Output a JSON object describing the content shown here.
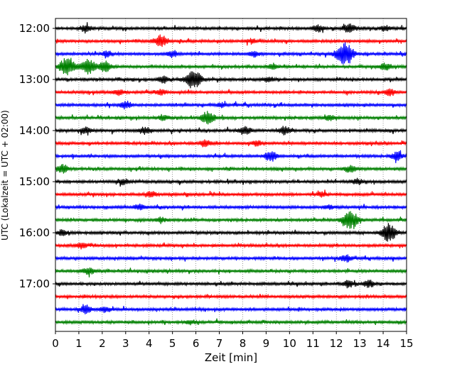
{
  "chart_data": {
    "type": "line",
    "title": "",
    "xlabel": "Zeit  [min]",
    "ylabel": "UTC (Lokalzeit = UTC + 02:00)",
    "xlim": [
      0,
      15
    ],
    "x_ticks": [
      0,
      1,
      2,
      3,
      4,
      5,
      6,
      7,
      8,
      9,
      10,
      11,
      12,
      13,
      14,
      15
    ],
    "y_tick_labels": [
      "12:00",
      "13:00",
      "14:00",
      "15:00",
      "16:00",
      "17:00"
    ],
    "grid": "vertical-dotted",
    "trace_colors": [
      "#000000",
      "#ff0000",
      "#0000ff",
      "#008000"
    ],
    "traces": [
      {
        "start": "12:00",
        "color": "#000000",
        "events": [
          [
            1.3,
            0.5
          ],
          [
            11.2,
            0.5
          ],
          [
            12.55,
            0.7
          ],
          [
            14.1,
            0.4
          ]
        ]
      },
      {
        "start": "12:15",
        "color": "#ff0000",
        "events": [
          [
            4.5,
            0.9
          ],
          [
            8.4,
            0.3
          ]
        ]
      },
      {
        "start": "12:30",
        "color": "#0000ff",
        "events": [
          [
            2.2,
            0.4
          ],
          [
            5.0,
            0.5
          ],
          [
            8.5,
            0.4
          ],
          [
            12.3,
            1.4
          ],
          [
            12.55,
            0.6
          ]
        ]
      },
      {
        "start": "12:45",
        "color": "#008000",
        "events": [
          [
            0.5,
            1.3
          ],
          [
            1.4,
            1.1
          ],
          [
            2.1,
            0.8
          ],
          [
            9.3,
            0.4
          ],
          [
            14.1,
            0.5
          ]
        ]
      },
      {
        "start": "13:00",
        "color": "#000000",
        "events": [
          [
            5.9,
            1.4
          ],
          [
            4.6,
            0.5
          ],
          [
            9.1,
            0.4
          ]
        ]
      },
      {
        "start": "13:15",
        "color": "#ff0000",
        "events": [
          [
            2.7,
            0.4
          ],
          [
            4.5,
            0.4
          ],
          [
            14.3,
            0.5
          ]
        ]
      },
      {
        "start": "13:30",
        "color": "#0000ff",
        "events": [
          [
            3.0,
            0.5
          ],
          [
            7.1,
            0.3
          ]
        ]
      },
      {
        "start": "13:45",
        "color": "#008000",
        "events": [
          [
            6.5,
            0.9
          ],
          [
            4.6,
            0.4
          ],
          [
            11.7,
            0.4
          ]
        ]
      },
      {
        "start": "14:00",
        "color": "#000000",
        "events": [
          [
            1.3,
            0.4
          ],
          [
            3.8,
            0.5
          ],
          [
            8.1,
            0.6
          ],
          [
            9.8,
            0.6
          ]
        ]
      },
      {
        "start": "14:15",
        "color": "#ff0000",
        "events": [
          [
            6.4,
            0.5
          ],
          [
            8.6,
            0.4
          ]
        ]
      },
      {
        "start": "14:30",
        "color": "#0000ff",
        "events": [
          [
            9.2,
            0.8
          ],
          [
            14.6,
            0.6
          ]
        ]
      },
      {
        "start": "14:45",
        "color": "#008000",
        "events": [
          [
            0.3,
            0.7
          ],
          [
            12.6,
            0.5
          ]
        ]
      },
      {
        "start": "15:00",
        "color": "#000000",
        "events": [
          [
            2.9,
            0.4
          ],
          [
            12.9,
            0.4
          ]
        ]
      },
      {
        "start": "15:15",
        "color": "#ff0000",
        "events": [
          [
            4.1,
            0.4
          ],
          [
            11.4,
            0.3
          ]
        ]
      },
      {
        "start": "15:30",
        "color": "#0000ff",
        "events": [
          [
            3.6,
            0.4
          ],
          [
            11.7,
            0.3
          ]
        ]
      },
      {
        "start": "15:45",
        "color": "#008000",
        "events": [
          [
            12.6,
            1.3
          ],
          [
            4.5,
            0.4
          ]
        ]
      },
      {
        "start": "16:00",
        "color": "#000000",
        "events": [
          [
            14.3,
            1.0
          ],
          [
            14.1,
            0.5
          ],
          [
            0.3,
            0.4
          ]
        ]
      },
      {
        "start": "16:15",
        "color": "#ff0000",
        "events": [
          [
            1.1,
            0.4
          ]
        ]
      },
      {
        "start": "16:30",
        "color": "#0000ff",
        "events": [
          [
            12.4,
            0.5
          ]
        ]
      },
      {
        "start": "16:45",
        "color": "#008000",
        "events": [
          [
            1.4,
            0.5
          ]
        ]
      },
      {
        "start": "17:00",
        "color": "#000000",
        "events": [
          [
            12.5,
            0.5
          ],
          [
            13.4,
            0.5
          ]
        ]
      },
      {
        "start": "17:15",
        "color": "#ff0000",
        "events": []
      },
      {
        "start": "17:30",
        "color": "#0000ff",
        "events": [
          [
            1.3,
            0.6
          ],
          [
            2.1,
            0.4
          ]
        ]
      },
      {
        "start": "17:45",
        "color": "#008000",
        "events": [
          [
            5.8,
            0.3
          ]
        ]
      }
    ]
  }
}
